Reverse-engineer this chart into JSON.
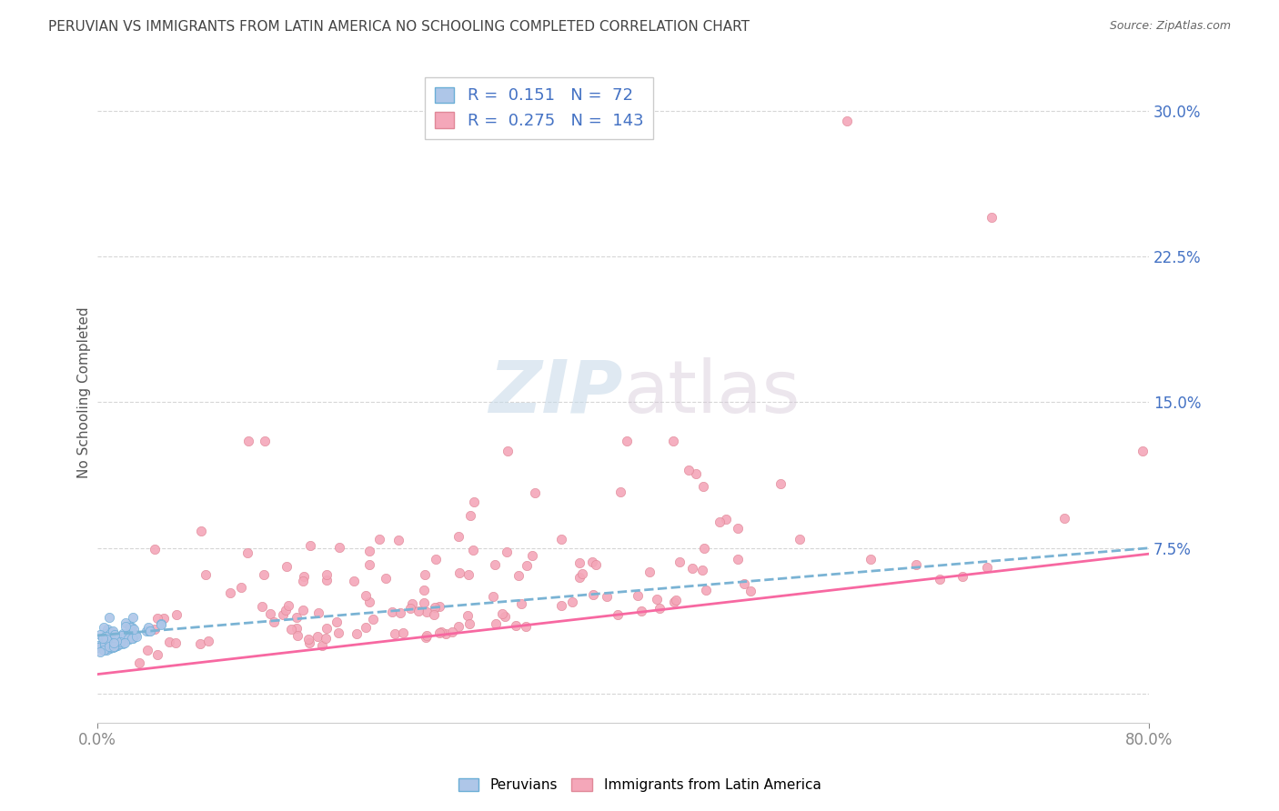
{
  "title": "PERUVIAN VS IMMIGRANTS FROM LATIN AMERICA NO SCHOOLING COMPLETED CORRELATION CHART",
  "source": "Source: ZipAtlas.com",
  "ylabel": "No Schooling Completed",
  "yticks": [
    0.0,
    0.075,
    0.15,
    0.225,
    0.3
  ],
  "ytick_labels": [
    "",
    "7.5%",
    "15.0%",
    "22.5%",
    "30.0%"
  ],
  "xlim": [
    0.0,
    0.8
  ],
  "ylim": [
    -0.015,
    0.325
  ],
  "peruvian_R": 0.151,
  "peruvian_N": 72,
  "latinam_R": 0.275,
  "latinam_N": 143,
  "peruvian_color": "#aec6e8",
  "latinam_color": "#f4a7b9",
  "trendline_peruvian_color": "#7ab3d4",
  "trendline_latinam_color": "#f768a1",
  "watermark_ZIP": "ZIP",
  "watermark_atlas": "atlas",
  "legend_label_peruvian": "Peruvians",
  "legend_label_latinam": "Immigrants from Latin America",
  "background_color": "#ffffff",
  "grid_color": "#cccccc",
  "title_color": "#444444",
  "blue_color": "#4472c4"
}
